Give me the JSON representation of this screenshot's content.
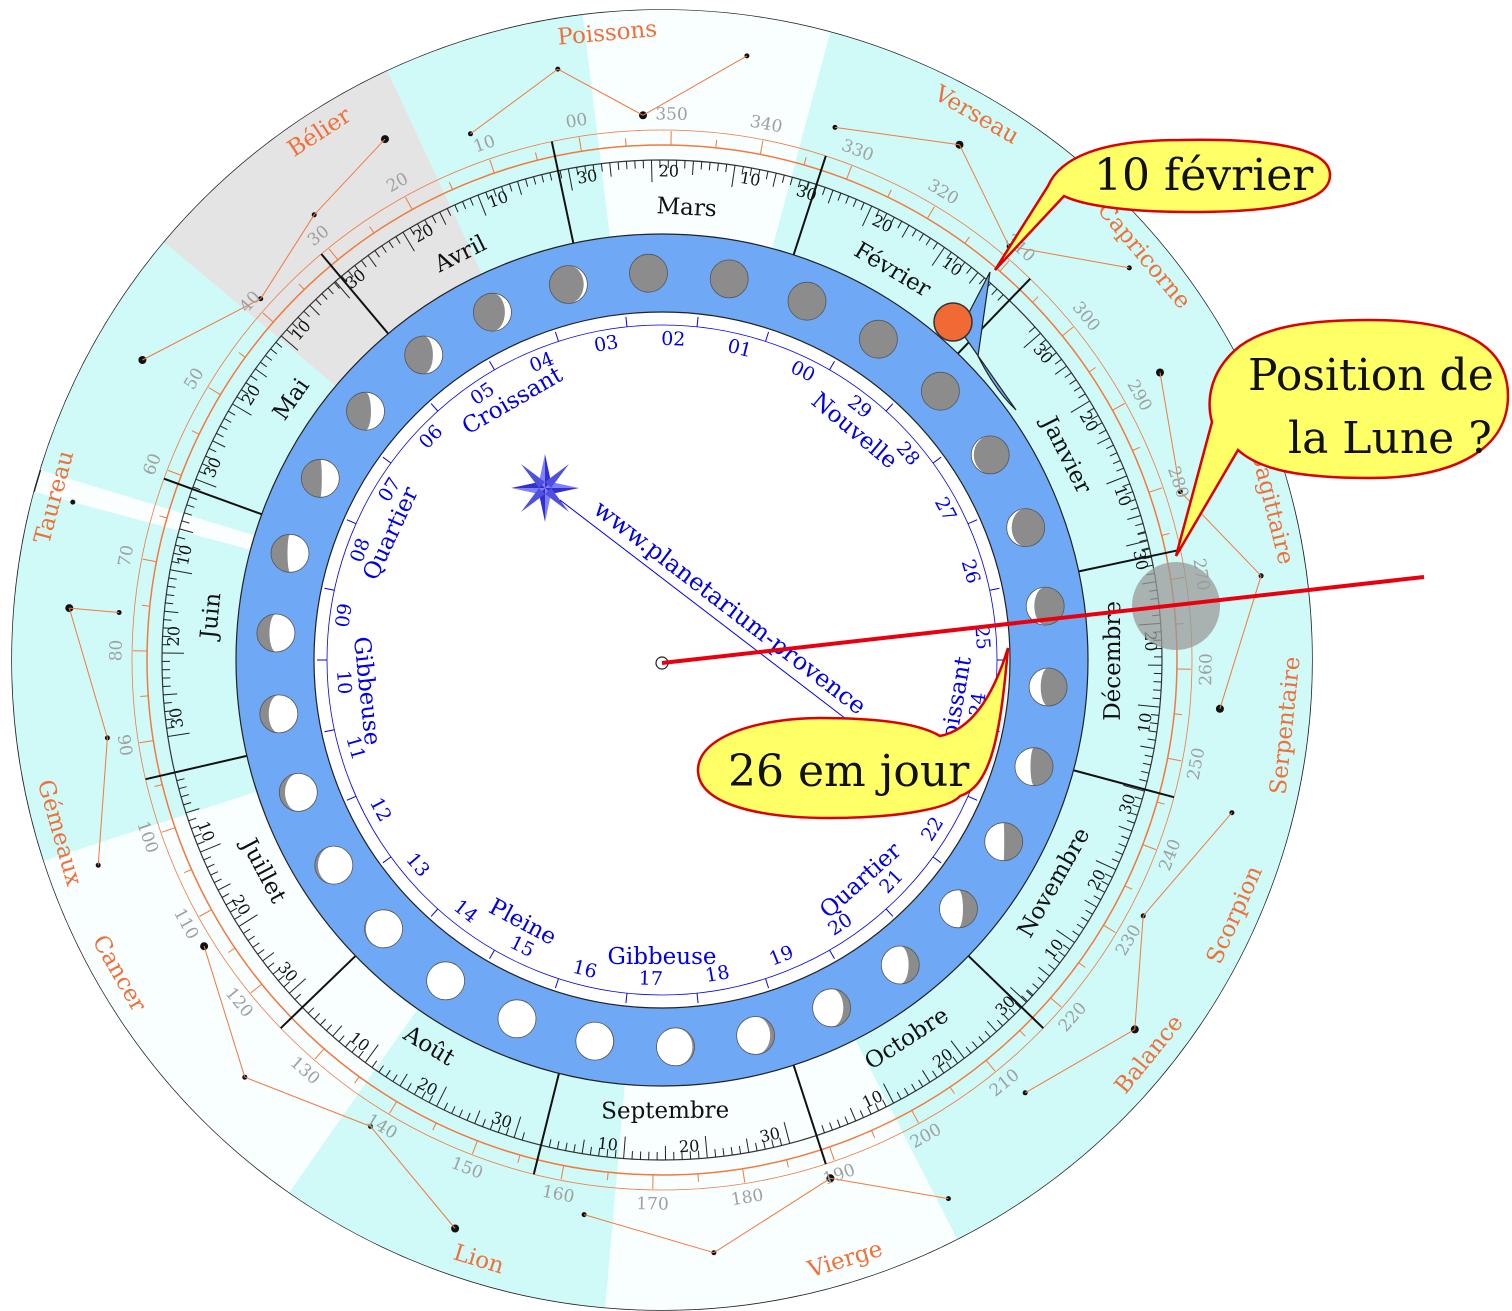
{
  "callouts": {
    "date": "10 février",
    "question_line1": "Position de",
    "question_line2": "la Lune ?",
    "moon_day": "26 em jour"
  },
  "url": "www.planetarium-provence",
  "zodiac": [
    "Poissons",
    "Bélier",
    "Taureau",
    "Gémeaux",
    "Cancer",
    "Lion",
    "Vierge",
    "Balance",
    "Scorpion",
    "Serpentaire",
    "Sagittaire",
    "Capricorne",
    "Verseau"
  ],
  "months": [
    "Janvier",
    "Février",
    "Mars",
    "Avril",
    "Mai",
    "Juin",
    "Juillet",
    "Août",
    "Septembre",
    "Octobre",
    "Novembre",
    "Décembre"
  ],
  "month_day_ticks": [
    "10",
    "20",
    "30"
  ],
  "ecliptic_degrees": [
    "00",
    "10",
    "20",
    "30",
    "40",
    "50",
    "60",
    "70",
    "80",
    "90",
    "100",
    "110",
    "120",
    "130",
    "140",
    "150",
    "160",
    "170",
    "180",
    "190",
    "200",
    "210",
    "220",
    "230",
    "240",
    "250",
    "260",
    "270",
    "280",
    "290",
    "300",
    "310",
    "320",
    "330",
    "340",
    "350"
  ],
  "moon_days": [
    "01",
    "02",
    "03",
    "04",
    "05",
    "06",
    "07",
    "08",
    "09",
    "10",
    "11",
    "12",
    "13",
    "14",
    "15",
    "16",
    "17",
    "18",
    "19",
    "20",
    "21",
    "22",
    "23",
    "24",
    "25",
    "26",
    "27",
    "28",
    "29",
    "00"
  ],
  "phases": [
    "Croissant",
    "Quartier",
    "Gibbeuse",
    "Pleine",
    "Gibbeuse",
    "Quartier",
    "Croissant",
    "Nouvelle"
  ],
  "colors": {
    "outer_band": "#e8fbfb",
    "zodiac_text": "#f0703a",
    "moon_ring": "#6fa8f5",
    "pointer_line": "#e8000f",
    "callout_fill": "#ffff66",
    "callout_stroke": "#dd0000",
    "moon_dot": "#f26a33",
    "month_text": "#111111",
    "blue_text": "#0000e6"
  }
}
